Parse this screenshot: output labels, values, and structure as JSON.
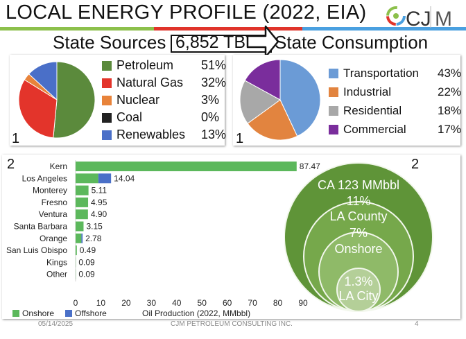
{
  "slide": {
    "title": "LOCAL ENERGY PROFILE (2022, EIA)",
    "stripe_colors": [
      "#8cc04b",
      "#e0342a",
      "#4aa0e0"
    ],
    "logo_text": "CJM",
    "source_heading": "State Sources",
    "total_label": "6,852 TBTU",
    "consumption_heading": "State Consumption",
    "footer_date": "05/14/2025",
    "footer_company": "CJM PETROLEUM CONSULTING INC.",
    "page_number": "4"
  },
  "chart_data": [
    {
      "type": "pie",
      "panel_label": "1",
      "categories": [
        "Petroleum",
        "Natural Gas",
        "Nuclear",
        "Coal",
        "Renewables"
      ],
      "values": [
        51,
        32,
        3,
        0,
        13
      ],
      "value_labels": [
        "51%",
        "32%",
        "3%",
        "0%",
        "13%"
      ],
      "colors": [
        "#5b8a3c",
        "#e3342b",
        "#e8833a",
        "#222222",
        "#4a6fc8"
      ],
      "legend_position": "right"
    },
    {
      "type": "pie",
      "panel_label": "1",
      "categories": [
        "Transportation",
        "Industrial",
        "Residential",
        "Commercial"
      ],
      "values": [
        43,
        22,
        18,
        17
      ],
      "value_labels": [
        "43%",
        "22%",
        "18%",
        "17%"
      ],
      "colors": [
        "#6b9bd6",
        "#e2843f",
        "#a8a8a8",
        "#7a2d9c"
      ],
      "legend_position": "right"
    },
    {
      "type": "bar",
      "orientation": "horizontal",
      "stacked": true,
      "panel_label": "2",
      "categories": [
        "Kern",
        "Los Angeles",
        "Monterey",
        "Fresno",
        "Ventura",
        "Santa Barbara",
        "Orange",
        "San Luis Obispo",
        "Kings",
        "Other"
      ],
      "series": [
        {
          "name": "Onshore",
          "color": "#5cb85c",
          "values": [
            87.47,
            9.0,
            5.11,
            4.95,
            4.9,
            3.15,
            2.3,
            0.49,
            0.09,
            0.09
          ]
        },
        {
          "name": "Offshore",
          "color": "#4a70c8",
          "values": [
            0,
            5.04,
            0,
            0,
            0,
            0,
            0.48,
            0,
            0,
            0
          ]
        }
      ],
      "total_labels": [
        "87.47",
        "14.04",
        "5.11",
        "4.95",
        "4.90",
        "3.15",
        "2.78",
        "0.49",
        "0.09",
        "0.09"
      ],
      "xlabel": "Oil Production (2022, MMbbl)",
      "xlim": [
        0,
        90
      ],
      "xticks": [
        0,
        10,
        20,
        30,
        40,
        50,
        60,
        70,
        80,
        90
      ],
      "legend_position": "bottom-left"
    },
    {
      "type": "nested-circles",
      "panel_label": "2",
      "rings": [
        {
          "label": "CA 123 MMbbl",
          "color": "#5f9438"
        },
        {
          "label": "11%",
          "sublabel": "LA County",
          "color": "#76a84b"
        },
        {
          "label": "7%",
          "sublabel": "Onshore",
          "color": "#8fba68"
        },
        {
          "label": "1.3%",
          "sublabel": "LA City",
          "color": "#b4cf98"
        }
      ]
    }
  ]
}
